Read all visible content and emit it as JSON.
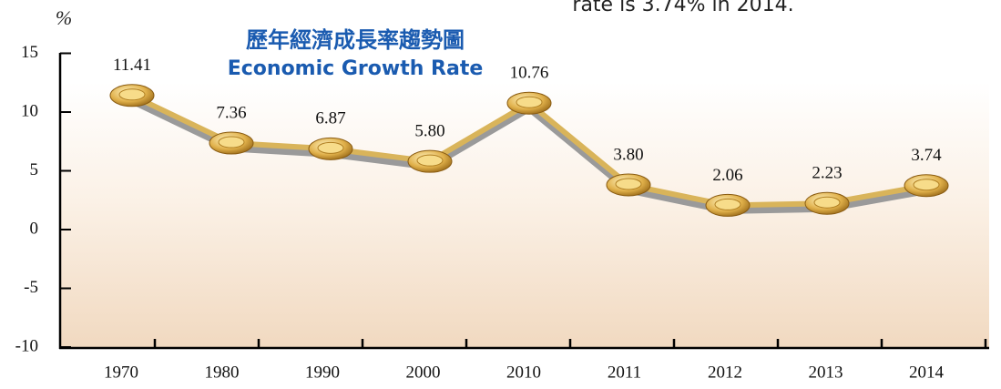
{
  "chart_data": {
    "type": "line",
    "title": "歷年經濟成長率趨勢圖",
    "subtitle": "Economic Growth Rate",
    "annotation": "rate is 3.74% in 2014.",
    "ylabel": "%",
    "categories": [
      "1970",
      "1980",
      "1990",
      "2000",
      "2010",
      "2011",
      "2012",
      "2013",
      "2014"
    ],
    "series": [
      {
        "name": "Economic Growth Rate",
        "color": "#d9b45a",
        "values": [
          11.41,
          7.36,
          6.87,
          5.8,
          10.76,
          3.8,
          2.06,
          2.23,
          3.74
        ],
        "value_labels": [
          "11.41",
          "7.36",
          "6.87",
          "5.80",
          "10.76",
          "3.80",
          "2.06",
          "2.23",
          "3.74"
        ]
      }
    ],
    "ylim": [
      -10,
      15
    ],
    "yticks": [
      15,
      10,
      5,
      0,
      -5,
      -10
    ]
  }
}
